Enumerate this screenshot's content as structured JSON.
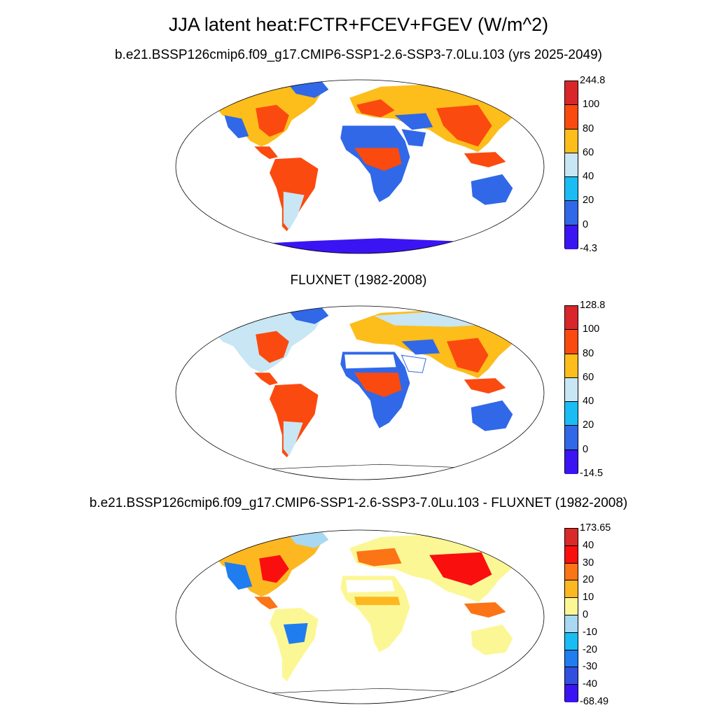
{
  "figure": {
    "main_title": "JJA latent heat:FCTR+FCEV+FGEV (W/m^2)"
  },
  "panels": [
    {
      "title": "b.e21.BSSP126cmip6.f09_g17.CMIP6-SSP1-2.6-SSP3-7.0Lu.103 (yrs 2025-2049)",
      "colorbar": {
        "labels": [
          "244.8",
          "100",
          "80",
          "60",
          "40",
          "20",
          "0",
          "-4.3"
        ],
        "colors": [
          "#d9262a",
          "#fb4a0f",
          "#fdbd1b",
          "#c8e6f4",
          "#19bdf3",
          "#3068e8",
          "#3b14f3"
        ]
      }
    },
    {
      "title": "FLUXNET (1982-2008)",
      "colorbar": {
        "labels": [
          "128.8",
          "100",
          "80",
          "60",
          "40",
          "20",
          "0",
          "-14.5"
        ],
        "colors": [
          "#d9262a",
          "#fb4a0f",
          "#fdbd1b",
          "#c8e6f4",
          "#19bdf3",
          "#3068e8",
          "#3b14f3"
        ]
      }
    },
    {
      "title": "b.e21.BSSP126cmip6.f09_g17.CMIP6-SSP1-2.6-SSP3-7.0Lu.103 - FLUXNET (1982-2008)",
      "colorbar": {
        "labels": [
          "173.65",
          "40",
          "30",
          "20",
          "10",
          "0",
          "-10",
          "-20",
          "-30",
          "-40",
          "-68.49"
        ],
        "colors": [
          "#d82a28",
          "#fa0f0f",
          "#fb7416",
          "#fdb821",
          "#fcf795",
          "#a8d8f2",
          "#19bdf3",
          "#1f7df0",
          "#3150e0",
          "#3b14f3"
        ]
      }
    }
  ]
}
